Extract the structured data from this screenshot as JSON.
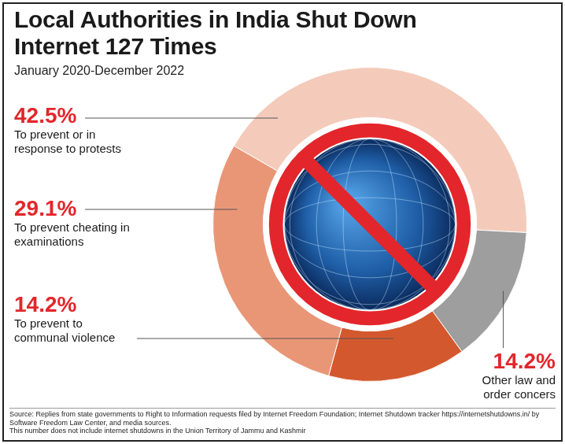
{
  "chart_data": {
    "type": "doughnut",
    "title": "Local Authorities in India Shut Down Internet 127 Times",
    "subtitle": "January 2020-December 2022",
    "categories": [
      "To prevent or in response to protests",
      "Other law and order concers",
      "To prevent to communal violence",
      "To prevent cheating in examinations"
    ],
    "values": [
      42.5,
      14.2,
      14.2,
      29.1
    ],
    "value_labels": [
      "42.5%",
      "14.2%",
      "14.2%",
      "29.1%"
    ],
    "data_labels": true,
    "colors": [
      "#f4cbbb",
      "#9e9e9e",
      "#d4582e",
      "#e99677"
    ],
    "source": "Source: Replies from state governments to Right to Information requests filed by Internet Freedom Foundation; Internet Shutdown tracker https://internetshutdowns.in/ by Software Freedom Law Center, and media sources.",
    "note": "This number does not include internet shutdowns in the Union Territory of Jammu and Kashmir"
  }
}
